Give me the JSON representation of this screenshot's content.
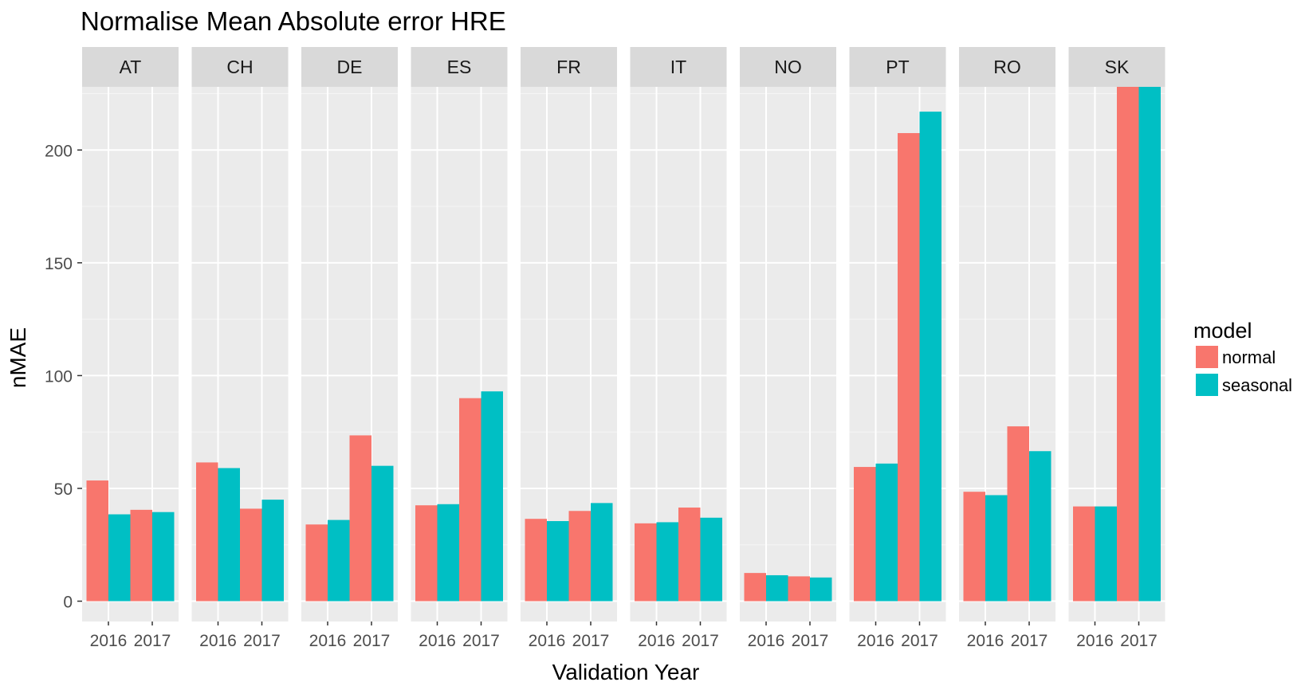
{
  "chart_data": {
    "type": "bar",
    "title": "Normalise Mean Absolute error HRE",
    "xlabel": "Validation Year",
    "ylabel": "nMAE",
    "ylim": [
      -9,
      228
    ],
    "yticks": [
      0,
      50,
      100,
      150,
      200
    ],
    "grid": true,
    "legend": {
      "title": "model",
      "placement": "right",
      "entries": [
        "normal",
        "seasonal"
      ]
    },
    "categories": [
      "2016",
      "2017"
    ],
    "facets": [
      {
        "label": "AT",
        "series": [
          {
            "name": "normal",
            "values": [
              53.5,
              40.5
            ]
          },
          {
            "name": "seasonal",
            "values": [
              38.5,
              39.5
            ]
          }
        ]
      },
      {
        "label": "CH",
        "series": [
          {
            "name": "normal",
            "values": [
              61.5,
              41
            ]
          },
          {
            "name": "seasonal",
            "values": [
              59,
              45
            ]
          }
        ]
      },
      {
        "label": "DE",
        "series": [
          {
            "name": "normal",
            "values": [
              34,
              73.5
            ]
          },
          {
            "name": "seasonal",
            "values": [
              36,
              60
            ]
          }
        ]
      },
      {
        "label": "ES",
        "series": [
          {
            "name": "normal",
            "values": [
              42.5,
              90
            ]
          },
          {
            "name": "seasonal",
            "values": [
              43,
              93
            ]
          }
        ]
      },
      {
        "label": "FR",
        "series": [
          {
            "name": "normal",
            "values": [
              36.5,
              40
            ]
          },
          {
            "name": "seasonal",
            "values": [
              35.5,
              43.5
            ]
          }
        ]
      },
      {
        "label": "IT",
        "series": [
          {
            "name": "normal",
            "values": [
              34.5,
              41.5
            ]
          },
          {
            "name": "seasonal",
            "values": [
              35,
              37
            ]
          }
        ]
      },
      {
        "label": "NO",
        "series": [
          {
            "name": "normal",
            "values": [
              12.5,
              11
            ]
          },
          {
            "name": "seasonal",
            "values": [
              11.5,
              10.5
            ]
          }
        ]
      },
      {
        "label": "PT",
        "series": [
          {
            "name": "normal",
            "values": [
              59.5,
              207.5
            ]
          },
          {
            "name": "seasonal",
            "values": [
              61,
              217
            ]
          }
        ]
      },
      {
        "label": "RO",
        "series": [
          {
            "name": "normal",
            "values": [
              48.5,
              77.5
            ]
          },
          {
            "name": "seasonal",
            "values": [
              47,
              66.5
            ]
          }
        ]
      },
      {
        "label": "SK",
        "series": [
          {
            "name": "normal",
            "values": [
              42,
              228
            ]
          },
          {
            "name": "seasonal",
            "values": [
              42,
              228
            ]
          }
        ]
      }
    ],
    "colors": {
      "normal": "#F8766D",
      "seasonal": "#00BFC4",
      "panel_bg": "#EBEBEB",
      "strip_bg": "#D9D9D9",
      "grid_major": "#FFFFFF",
      "grid_minor": "#F5F5F5"
    }
  }
}
